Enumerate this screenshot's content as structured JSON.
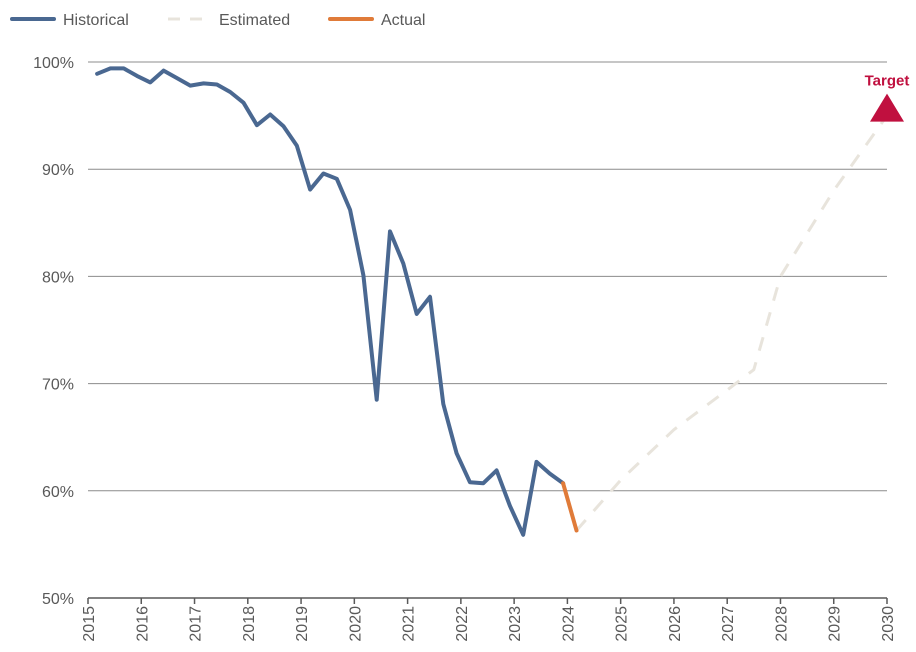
{
  "chart_data": {
    "type": "line",
    "title": "",
    "xlabel": "",
    "ylabel": "",
    "xlim": [
      2015,
      2030
    ],
    "ylim": [
      50,
      100
    ],
    "y_ticks": [
      {
        "value": 50,
        "label": "50%"
      },
      {
        "value": 60,
        "label": "60%"
      },
      {
        "value": 70,
        "label": "70%"
      },
      {
        "value": 80,
        "label": "80%"
      },
      {
        "value": 90,
        "label": "90%"
      },
      {
        "value": 100,
        "label": "100%"
      }
    ],
    "x_ticks": [
      {
        "value": 2015,
        "label": "2015"
      },
      {
        "value": 2016,
        "label": "2016"
      },
      {
        "value": 2017,
        "label": "2017"
      },
      {
        "value": 2018,
        "label": "2018"
      },
      {
        "value": 2019,
        "label": "2019"
      },
      {
        "value": 2020,
        "label": "2020"
      },
      {
        "value": 2021,
        "label": "2021"
      },
      {
        "value": 2022,
        "label": "2022"
      },
      {
        "value": 2023,
        "label": "2023"
      },
      {
        "value": 2024,
        "label": "2024"
      },
      {
        "value": 2025,
        "label": "2025"
      },
      {
        "value": 2026,
        "label": "2026"
      },
      {
        "value": 2027,
        "label": "2027"
      },
      {
        "value": 2028,
        "label": "2028"
      },
      {
        "value": 2029,
        "label": "2029"
      },
      {
        "value": 2030,
        "label": "2030"
      }
    ],
    "grid": {
      "horizontal": true,
      "vertical": false
    },
    "legend": "top-left",
    "series": [
      {
        "name": "Historical",
        "color": "#4a6891",
        "style": "solid",
        "x": [
          2015.17,
          2015.42,
          2015.67,
          2015.92,
          2016.17,
          2016.42,
          2016.67,
          2016.92,
          2017.17,
          2017.42,
          2017.67,
          2017.92,
          2018.17,
          2018.42,
          2018.67,
          2018.92,
          2019.17,
          2019.42,
          2019.67,
          2019.92,
          2020.17,
          2020.42,
          2020.67,
          2020.92,
          2021.17,
          2021.42,
          2021.67,
          2021.92,
          2022.17,
          2022.42,
          2022.67,
          2022.92,
          2023.17,
          2023.42,
          2023.67,
          2023.92
        ],
        "y": [
          98.9,
          99.4,
          99.4,
          98.7,
          98.1,
          99.2,
          98.5,
          97.8,
          98.0,
          97.9,
          97.2,
          96.2,
          94.1,
          95.1,
          94.0,
          92.2,
          88.1,
          89.6,
          89.1,
          86.2,
          80.1,
          68.5,
          84.2,
          81.2,
          76.5,
          78.1,
          68.1,
          63.5,
          60.8,
          60.7,
          61.9,
          58.6,
          55.9,
          62.7,
          61.6,
          60.7
        ]
      },
      {
        "name": "Estimated",
        "color": "#e8e4dc",
        "style": "dashed",
        "x": [
          2024.17,
          2025.0,
          2026.0,
          2027.0,
          2027.5,
          2028.0,
          2029.0,
          2030.0
        ],
        "y": [
          56.3,
          61.0,
          65.7,
          69.4,
          71.3,
          80.0,
          88.0,
          95.0
        ]
      },
      {
        "name": "Actual",
        "color": "#e07b39",
        "style": "solid",
        "x": [
          2023.92,
          2024.17
        ],
        "y": [
          60.7,
          56.3
        ]
      }
    ],
    "annotations": [
      {
        "text": "Target",
        "x": 2030.0,
        "y": 95.0,
        "marker": "triangle",
        "color": "#c0103f"
      }
    ]
  }
}
